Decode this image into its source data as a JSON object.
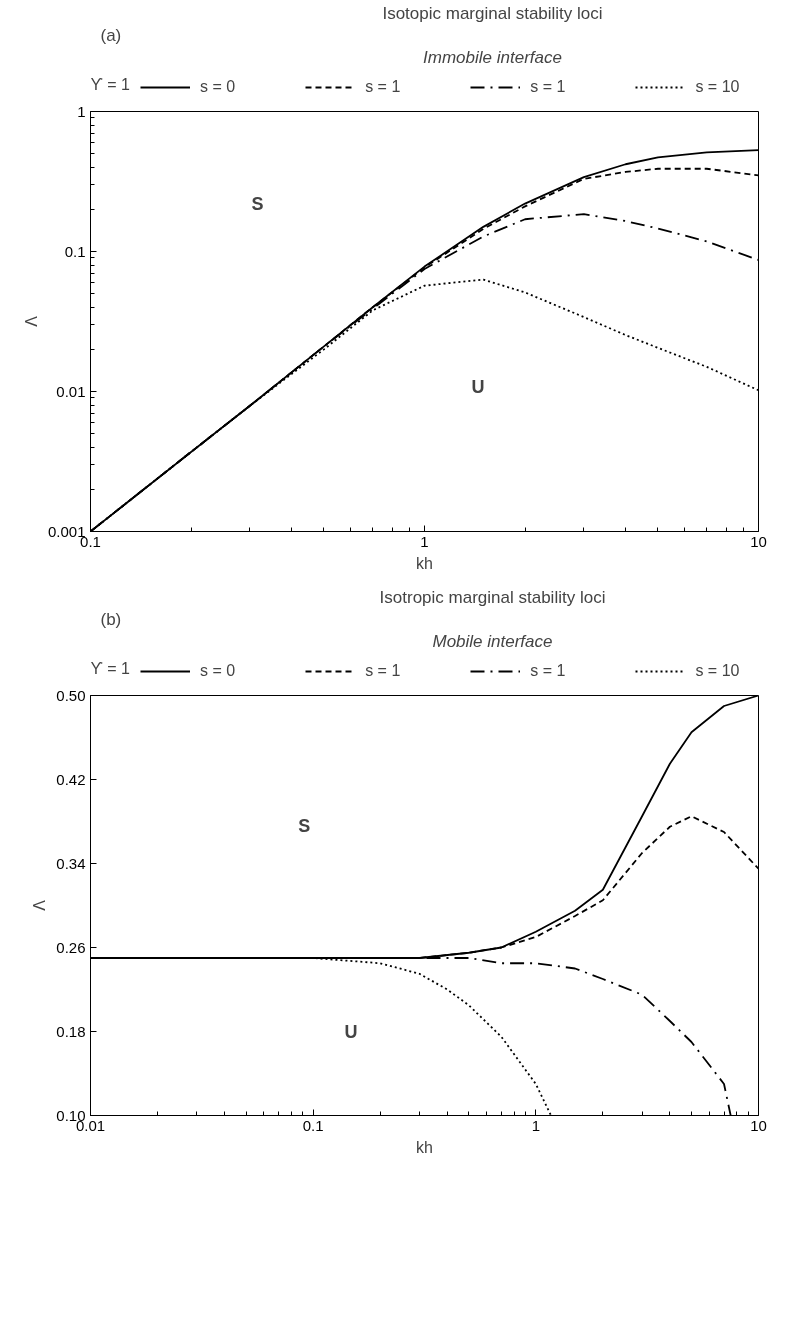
{
  "chart_data": [
    {
      "type": "line",
      "title": "Isotopic marginal stability loci",
      "subtitle": "Immobile interface",
      "xlabel": "kh",
      "ylabel": "Λ",
      "legend_title": "ϒ = 1",
      "annotations": [
        "(a)",
        "1",
        "S",
        "U"
      ],
      "x": [
        0.1,
        0.2,
        0.3,
        0.5,
        0.7,
        1,
        1.5,
        2,
        3,
        4,
        5,
        7,
        10
      ],
      "series": [
        {
          "name": "s = 0",
          "color": "#000000",
          "line_style": "solid",
          "values": [
            0.001,
            0.0037,
            0.0079,
            0.021,
            0.04,
            0.078,
            0.15,
            0.22,
            0.34,
            0.42,
            0.47,
            0.51,
            0.53
          ]
        },
        {
          "name": "s = 1",
          "color": "#000000",
          "line_style": "dashed",
          "values": [
            0.001,
            0.0037,
            0.0079,
            0.021,
            0.04,
            0.077,
            0.145,
            0.21,
            0.33,
            0.37,
            0.39,
            0.39,
            0.35
          ]
        },
        {
          "name": "s = 1",
          "color": "#000000",
          "line_style": "dashdot",
          "values": [
            0.001,
            0.0037,
            0.0079,
            0.021,
            0.039,
            0.075,
            0.128,
            0.17,
            0.185,
            0.165,
            0.146,
            0.118,
            0.087
          ]
        },
        {
          "name": "s = 10",
          "color": "#000000",
          "line_style": "dotted",
          "values": [
            0.001,
            0.0037,
            0.0079,
            0.02,
            0.038,
            0.057,
            0.063,
            0.051,
            0.034,
            0.0253,
            0.0205,
            0.015,
            0.0102
          ]
        }
      ],
      "log": "xy",
      "xlim": [
        0.1,
        10
      ],
      "ylim": [
        0.001,
        1
      ],
      "xticks": [
        0.1,
        1,
        10
      ],
      "yticks": [
        0.001,
        0.01,
        0.1,
        1
      ],
      "grid": false,
      "legend": "top"
    },
    {
      "type": "line",
      "title": "Isotropic marginal stability loci",
      "subtitle": "Mobile interface",
      "xlabel": "kh",
      "ylabel": "Λ",
      "legend_title": "ϒ = 1",
      "annotations": [
        "(b)",
        "S",
        "U"
      ],
      "series": [
        {
          "name": "s = 0",
          "color": "#000000",
          "line_style": "solid",
          "x": [
            0.01,
            0.1,
            0.3,
            0.5,
            0.7,
            1,
            1.5,
            2,
            3,
            4,
            5,
            7,
            10
          ],
          "values": [
            0.25,
            0.25,
            0.25,
            0.255,
            0.26,
            0.275,
            0.295,
            0.315,
            0.385,
            0.435,
            0.465,
            0.49,
            0.5
          ]
        },
        {
          "name": "s = 1",
          "color": "#000000",
          "line_style": "dashed",
          "x": [
            0.01,
            0.1,
            0.3,
            0.5,
            0.7,
            1,
            1.5,
            2,
            3,
            4,
            5,
            7,
            10
          ],
          "values": [
            0.25,
            0.25,
            0.25,
            0.255,
            0.26,
            0.27,
            0.29,
            0.305,
            0.35,
            0.375,
            0.385,
            0.37,
            0.335
          ]
        },
        {
          "name": "s = 1",
          "color": "#000000",
          "line_style": "dashdot",
          "x": [
            0.01,
            0.1,
            0.3,
            0.5,
            0.7,
            1,
            1.5,
            2,
            3,
            4,
            5,
            7,
            7.5
          ],
          "values": [
            0.25,
            0.25,
            0.25,
            0.25,
            0.245,
            0.245,
            0.24,
            0.23,
            0.215,
            0.19,
            0.17,
            0.13,
            0.1
          ]
        },
        {
          "name": "s = 10",
          "color": "#000000",
          "line_style": "dotted",
          "x": [
            0.01,
            0.05,
            0.1,
            0.2,
            0.3,
            0.4,
            0.5,
            0.7,
            1,
            1.17
          ],
          "values": [
            0.25,
            0.25,
            0.25,
            0.245,
            0.235,
            0.22,
            0.205,
            0.175,
            0.13,
            0.1
          ]
        }
      ],
      "log": "x",
      "xlim": [
        0.01,
        10
      ],
      "ylim": [
        0.1,
        0.5
      ],
      "xticks": [
        0.01,
        0.1,
        1,
        10
      ],
      "yticks": [
        {
          "value": 0.1,
          "label": "0.10"
        },
        0.18,
        0.26,
        0.34,
        0.42,
        {
          "value": 0.5,
          "label": "0.50"
        }
      ],
      "grid": false,
      "legend": "top"
    }
  ]
}
